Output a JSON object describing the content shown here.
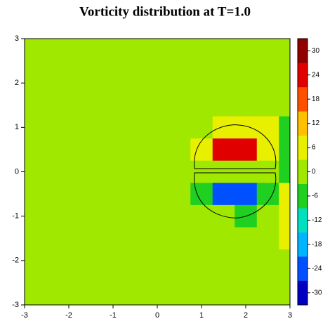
{
  "chart_data": {
    "type": "heatmap",
    "title": "Vorticity distribution at T=1.0",
    "x": [
      -3,
      -2.5,
      -2,
      -1.5,
      -1,
      -0.5,
      0,
      0.5,
      1,
      1.5,
      2,
      2.5,
      3
    ],
    "y": [
      3,
      2.5,
      2,
      1.5,
      1,
      0.5,
      0,
      -0.5,
      -1,
      -1.5,
      -2,
      -2.5,
      -3
    ],
    "z": [
      [
        2,
        2,
        2,
        2,
        2,
        2,
        2,
        2,
        2,
        2,
        2,
        2,
        0
      ],
      [
        2,
        2,
        2,
        2,
        2,
        2,
        2,
        2,
        2,
        2,
        2,
        2,
        0
      ],
      [
        2,
        2,
        1,
        1,
        1,
        2,
        2,
        2,
        2,
        2,
        2,
        2,
        0
      ],
      [
        2,
        2,
        1,
        2,
        2,
        2,
        1,
        2,
        2,
        2,
        2,
        2,
        -2
      ],
      [
        2,
        2,
        1,
        2,
        1,
        1,
        2,
        1,
        2,
        3,
        4,
        3,
        -4
      ],
      [
        2,
        2,
        1,
        2,
        1,
        1,
        2,
        2,
        8,
        24,
        26,
        6,
        -6
      ],
      [
        2,
        2,
        2,
        1,
        1,
        0,
        1,
        1,
        0,
        0,
        0,
        0,
        -8
      ],
      [
        2,
        2,
        1,
        2,
        1,
        1,
        2,
        2,
        -8,
        -24,
        -26,
        -6,
        8
      ],
      [
        2,
        2,
        1,
        2,
        1,
        1,
        2,
        1,
        2,
        -3,
        -4,
        -3,
        6
      ],
      [
        2,
        2,
        1,
        2,
        2,
        2,
        1,
        2,
        2,
        2,
        2,
        2,
        4
      ],
      [
        2,
        2,
        1,
        1,
        1,
        2,
        2,
        2,
        2,
        2,
        2,
        2,
        2
      ],
      [
        2,
        2,
        2,
        2,
        2,
        2,
        2,
        2,
        2,
        2,
        2,
        2,
        2
      ],
      [
        2,
        2,
        2,
        2,
        2,
        2,
        2,
        2,
        2,
        2,
        2,
        2,
        2
      ]
    ],
    "xlim": [
      -3,
      3
    ],
    "ylim": [
      -3,
      3
    ],
    "xticks": [
      -3,
      -2,
      -1,
      0,
      1,
      2,
      3
    ],
    "yticks": [
      -3,
      -2,
      -1,
      0,
      1,
      2,
      3
    ],
    "colorbar_lim": [
      -33,
      33
    ],
    "colorbar_ticks": [
      -30,
      -24,
      -18,
      -12,
      -6,
      0,
      6,
      12,
      18,
      24,
      30
    ],
    "colormap": [
      "#0000c0",
      "#0050ff",
      "#00b4ff",
      "#00e0c0",
      "#20d020",
      "#a0e800",
      "#e8f000",
      "#ffc000",
      "#ff5000",
      "#e00000",
      "#900000"
    ]
  }
}
